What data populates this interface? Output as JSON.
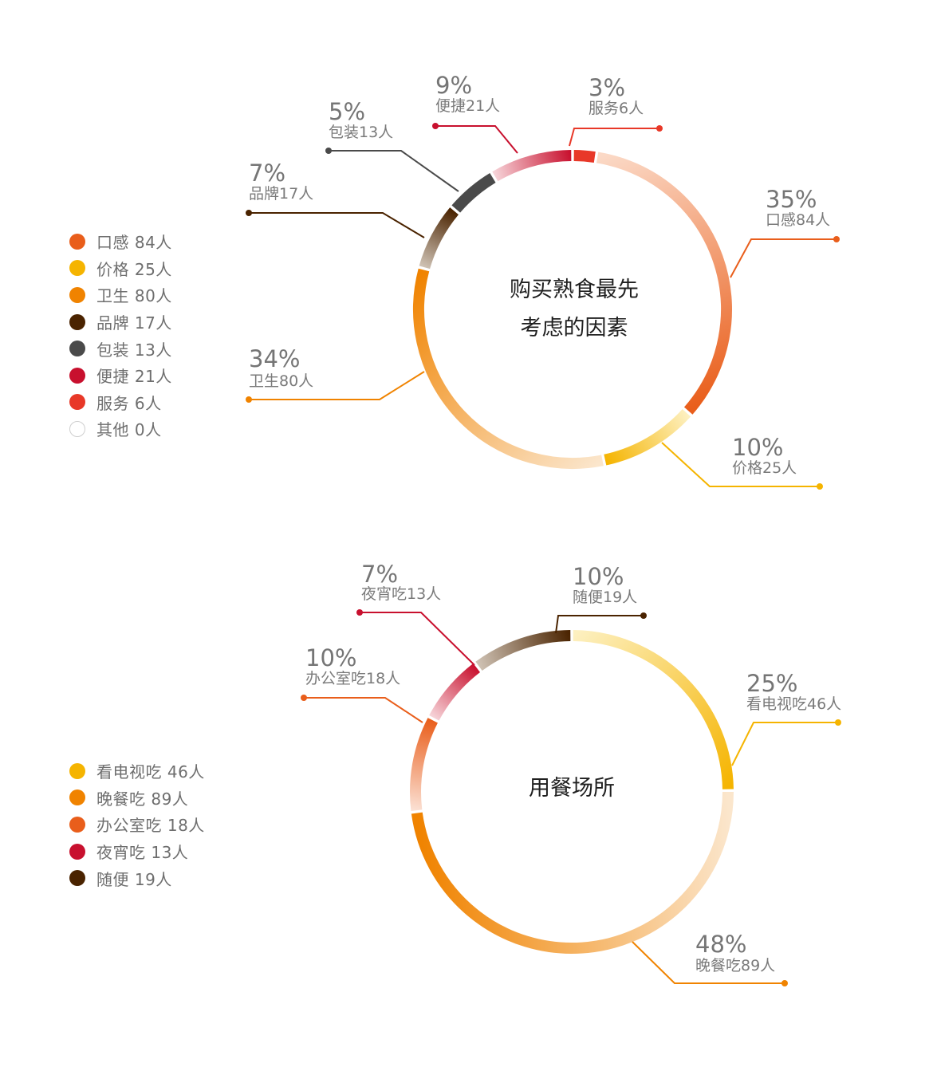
{
  "chart_data": [
    {
      "type": "pie",
      "title": "购买熟食最先考虑的因素",
      "title_lines": [
        "购买熟食最先",
        "考虑的因素"
      ],
      "series": [
        {
          "name": "口感",
          "count_label": "口感84人",
          "legend_label": "口感 84人",
          "percent_label": "35%",
          "value": 84,
          "percent": 35,
          "color": "#e95e1b",
          "light": "#fbd9c6"
        },
        {
          "name": "价格",
          "count_label": "价格25人",
          "legend_label": "价格 25人",
          "percent_label": "10%",
          "value": 25,
          "percent": 10,
          "color": "#f5b400",
          "light": "#fdf0c0"
        },
        {
          "name": "卫生",
          "count_label": "卫生80人",
          "legend_label": "卫生 80人",
          "percent_label": "34%",
          "value": 80,
          "percent": 34,
          "color": "#f08300",
          "light": "#fbe6cc"
        },
        {
          "name": "品牌",
          "count_label": "品牌17人",
          "legend_label": "品牌 17人",
          "percent_label": "7%",
          "value": 17,
          "percent": 7,
          "color": "#4a2300",
          "light": "#cfc2b4"
        },
        {
          "name": "包装",
          "count_label": "包装13人",
          "legend_label": "包装 13人",
          "percent_label": "5%",
          "value": 13,
          "percent": 5,
          "color": "#4a4a4a",
          "light": "#4a4a4a"
        },
        {
          "name": "便捷",
          "count_label": "便捷21人",
          "legend_label": "便捷 21人",
          "percent_label": "9%",
          "value": 21,
          "percent": 9,
          "color": "#c8102e",
          "light": "#f6d3d8"
        },
        {
          "name": "服务",
          "count_label": "服务6人",
          "legend_label": "服务 6人",
          "percent_label": "3%",
          "value": 6,
          "percent": 3,
          "color": "#e83828",
          "light": "#e83828"
        },
        {
          "name": "其他",
          "count_label": "",
          "legend_label": "其他 0人",
          "percent_label": "",
          "value": 0,
          "percent": 0,
          "color": "#ffffff",
          "light": "#ffffff"
        }
      ]
    },
    {
      "type": "pie",
      "title": "用餐场所",
      "title_lines": [
        "用餐场所"
      ],
      "series": [
        {
          "name": "看电视吃",
          "count_label": "看电视吃46人",
          "legend_label": "看电视吃 46人",
          "percent_label": "25%",
          "value": 46,
          "percent": 25,
          "color": "#f5b400",
          "light": "#fdf0c0"
        },
        {
          "name": "晚餐吃",
          "count_label": "晚餐吃89人",
          "legend_label": "晚餐吃 89人",
          "percent_label": "48%",
          "value": 89,
          "percent": 48,
          "color": "#f08300",
          "light": "#fbe6cc"
        },
        {
          "name": "办公室吃",
          "count_label": "办公室吃18人",
          "legend_label": "办公室吃 18人",
          "percent_label": "10%",
          "value": 18,
          "percent": 10,
          "color": "#e95e1b",
          "light": "#fbe0d3"
        },
        {
          "name": "夜宵吃",
          "count_label": "夜宵吃13人",
          "legend_label": "夜宵吃 13人",
          "percent_label": "7%",
          "value": 13,
          "percent": 7,
          "color": "#c8102e",
          "light": "#f6d3d8"
        },
        {
          "name": "随便",
          "count_label": "随便19人",
          "legend_label": "随便 19人",
          "percent_label": "10%",
          "value": 19,
          "percent": 10,
          "color": "#4a2300",
          "light": "#cfc2b4"
        }
      ]
    }
  ]
}
